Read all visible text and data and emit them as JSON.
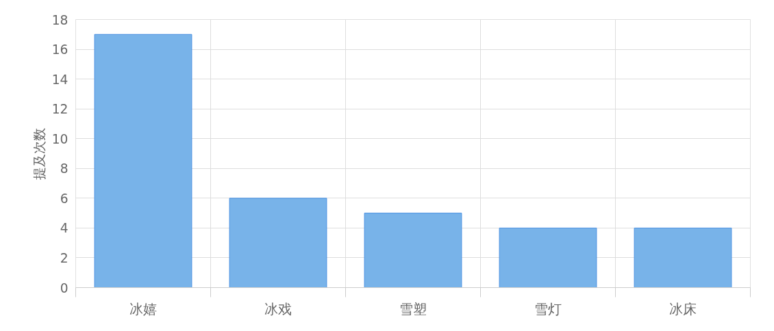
{
  "chart_data": {
    "type": "bar",
    "ylabel": "提及次数",
    "categories": [
      "冰嬉",
      "冰戏",
      "雪塑",
      "雪灯",
      "冰床"
    ],
    "values": [
      17,
      6,
      5,
      4,
      4
    ],
    "color": "#78b3e9",
    "ylim": [
      0,
      18
    ],
    "yticks": [
      0,
      2,
      4,
      6,
      8,
      10,
      12,
      14,
      16,
      18
    ],
    "grid": true
  }
}
